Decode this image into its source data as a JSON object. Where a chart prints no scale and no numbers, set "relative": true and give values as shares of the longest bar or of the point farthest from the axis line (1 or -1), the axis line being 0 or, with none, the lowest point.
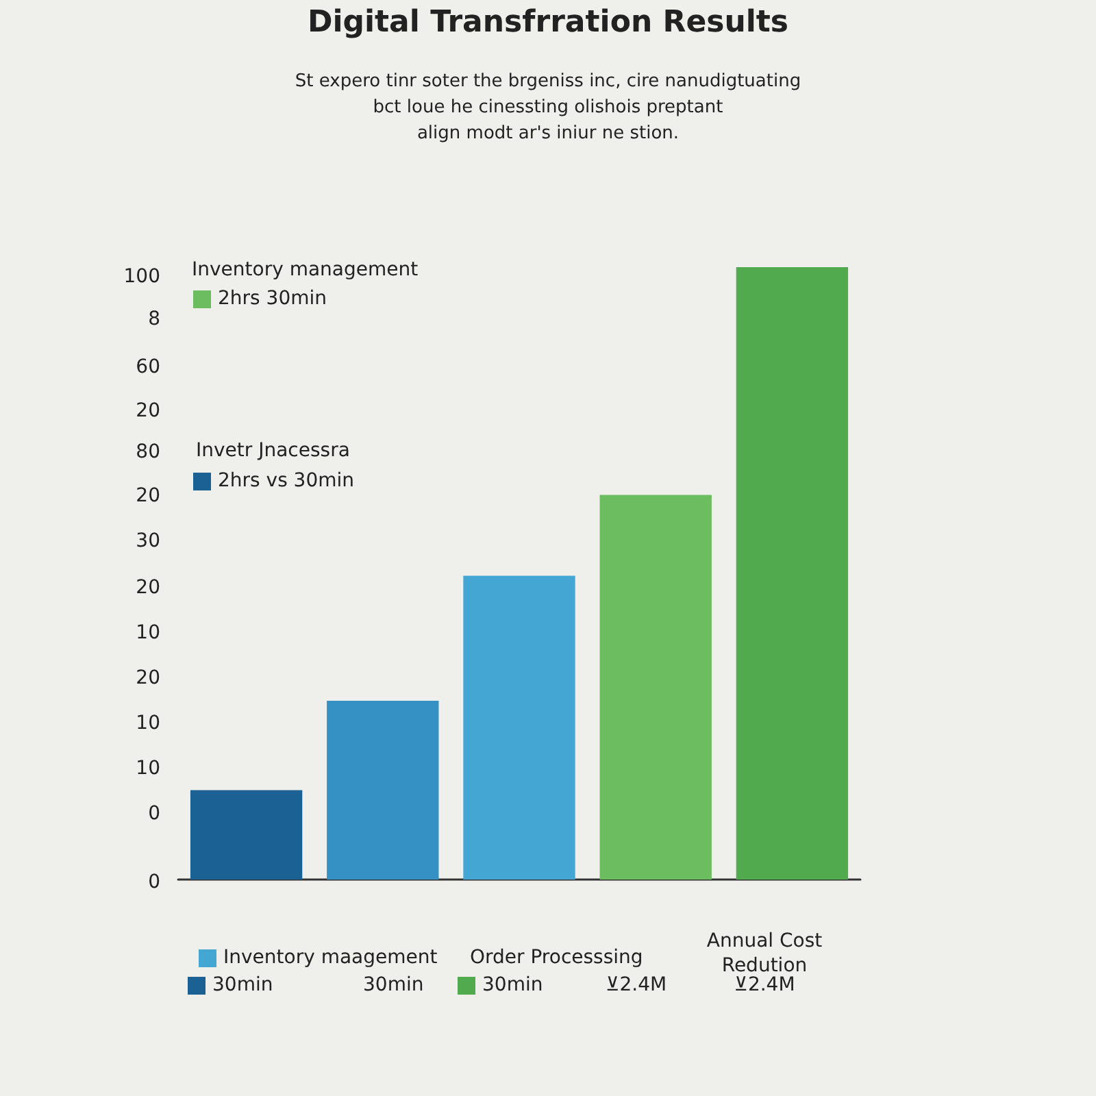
{
  "chart_data": {
    "type": "bar",
    "title": "Digital Transfrration Results",
    "subtitle": "St expero tinr soter the brgeniss inc, cire nanudigtuating\nbct loue  he cinessting olishois preptant\nalign modt ar's iniur ne stion.",
    "categories": [
      null,
      null,
      null,
      null,
      null
    ],
    "values": [
      0.146,
      0.292,
      0.496,
      0.628,
      1
    ],
    "colors": [
      "#1b6194",
      "#3590c4",
      "#44a6d2",
      "#6bbd5f",
      "#52aa4f"
    ],
    "relative": true,
    "annotations": [
      "Inventory management",
      "2hrs 30min",
      "Invetr Jnacessra",
      "2hrs vs 30min",
      "Inventory maagement",
      "30min",
      "30min",
      "Order Processsing",
      "30min",
      "⊻2.4M",
      "Annual Cost\nRedution",
      "⊻2.4M",
      "100",
      "8",
      "60",
      "20",
      "80",
      "20",
      "30",
      "20",
      "10",
      "20",
      "10",
      "10",
      "0",
      "0"
    ]
  }
}
